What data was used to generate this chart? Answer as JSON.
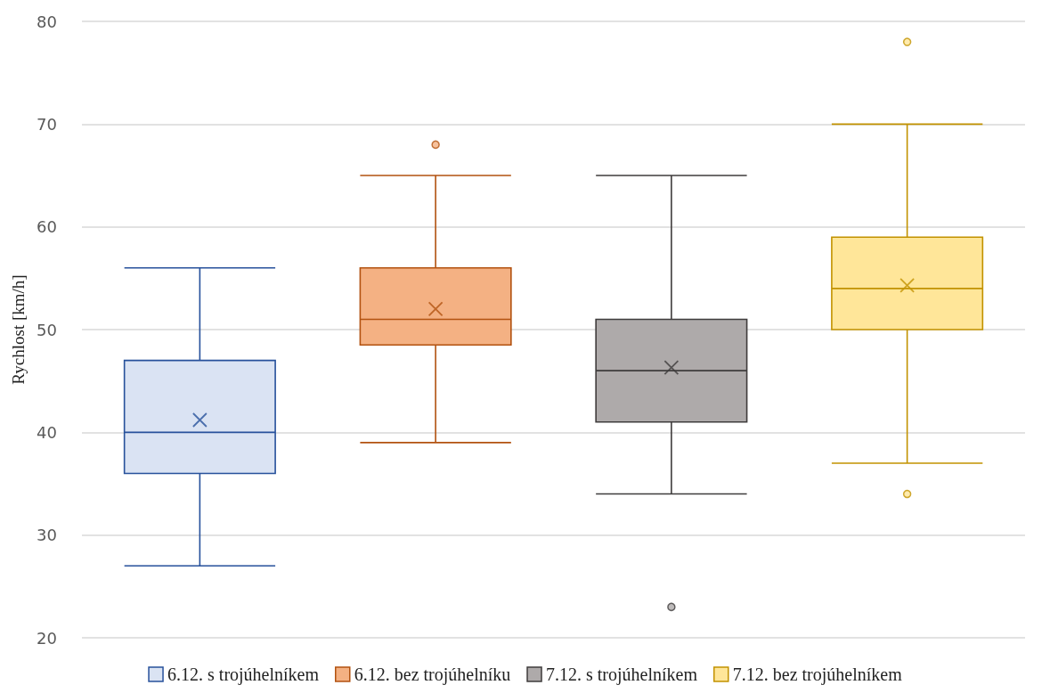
{
  "chart_data": {
    "type": "box",
    "ylabel": "Rychlost [km/h]",
    "categories": [
      null,
      null,
      null,
      null
    ],
    "series": [
      {
        "name": "6.12. s trojúhelníkem",
        "color": "#dae3f3",
        "boxes": [
          {
            "low": 27,
            "q1": 36,
            "median": 40,
            "q3": 47,
            "high": 56,
            "mean": 41.2
          },
          null,
          null,
          null
        ]
      },
      {
        "name": "6.12. bez trojúhelníku",
        "color": "#f4b183",
        "boxes": [
          null,
          {
            "low": 39,
            "q1": 48.5,
            "median": 51,
            "q3": 56,
            "high": 65,
            "mean": 52,
            "outliers": [
              68
            ]
          },
          null,
          null
        ]
      },
      {
        "name": "7.12. s trojúhelníkem",
        "color": "#aeaaaa",
        "boxes": [
          null,
          null,
          {
            "low": 34,
            "q1": 41,
            "median": 46,
            "q3": 51,
            "high": 65,
            "mean": 46.3,
            "outliers": [
              23
            ]
          },
          null
        ]
      },
      {
        "name": "7.12. bez trojúhelníkem",
        "color": "#ffe699",
        "boxes": [
          null,
          null,
          null,
          {
            "low": 37,
            "q1": 50,
            "median": 54,
            "q3": 59,
            "high": 70,
            "mean": 54.3,
            "outliers": [
              78,
              34
            ]
          }
        ]
      }
    ],
    "ylim": [
      20,
      80
    ],
    "yticks": [
      20,
      30,
      40,
      50,
      60,
      70,
      80
    ],
    "grid": "y",
    "legend": "bottom",
    "tick_labels": "y",
    "marker": "circle"
  }
}
